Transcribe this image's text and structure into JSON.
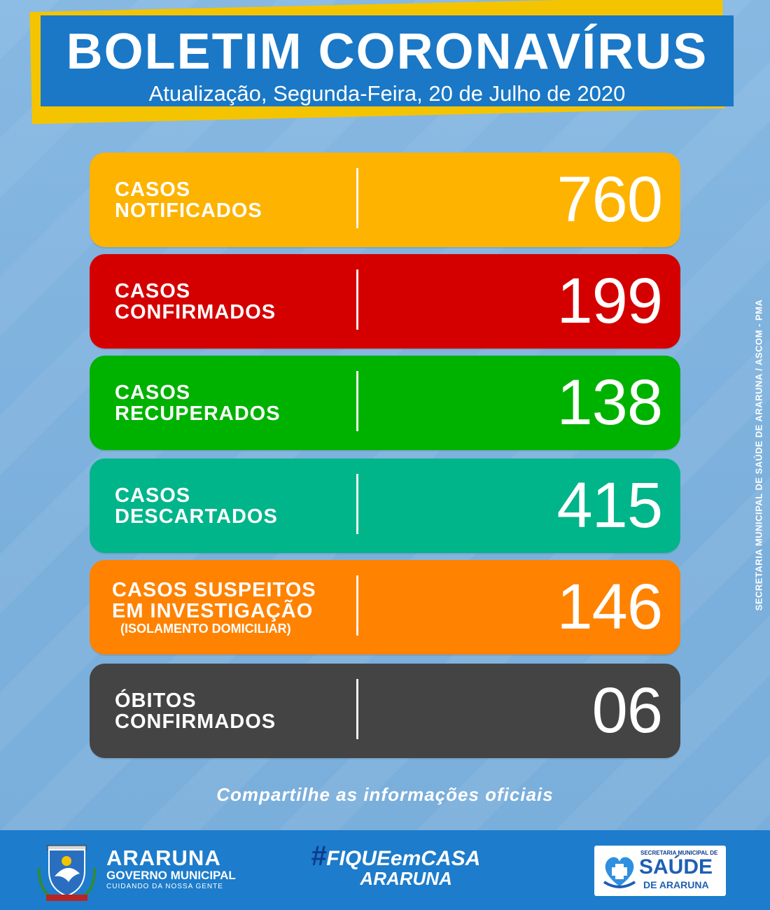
{
  "header": {
    "title": "BOLETIM CORONAVÍRUS",
    "subtitle": "Atualização, Segunda-Feira, 20 de Julho de 2020"
  },
  "cards": [
    {
      "line1": "CASOS",
      "line2": "NOTIFICADOS",
      "value": "760",
      "color": "#fdb300"
    },
    {
      "line1": "CASOS",
      "line2": "CONFIRMADOS",
      "value": "199",
      "color": "#d40000"
    },
    {
      "line1": "CASOS",
      "line2": "RECUPERADOS",
      "value": "138",
      "color": "#00b200"
    },
    {
      "line1": "CASOS",
      "line2": "DESCARTADOS",
      "value": "415",
      "color": "#00b58a"
    },
    {
      "line1": "CASOS SUSPEITOS",
      "line2": "EM INVESTIGAÇÃO",
      "note": "(ISOLAMENTO DOMICILIAR)",
      "value": "146",
      "color": "#ff8200"
    },
    {
      "line1": "ÓBITOS",
      "line2": "CONFIRMADOS",
      "value": "06",
      "color": "#444444"
    }
  ],
  "side_credit": "SECRETARIA MUNICIPAL DE SAÚDE DE ARARUNA / ASCOM - PMA",
  "share_text": "Compartilhe as informações oficiais",
  "footer": {
    "brand_name": "ARARUNA",
    "brand_gov": "GOVERNO MUNICIPAL",
    "brand_slogan": "CUIDANDO DA NOSSA GENTE",
    "hashtag_line1_hash": "#",
    "hashtag_line1": "FIQUEemCASA",
    "hashtag_line2": "ARARUNA",
    "health_sec": "SECRETARIA MUNICIPAL DE",
    "health_saude": "SAÚDE",
    "health_araruna": "DE ARARUNA",
    "crest_text": "ARARUNA"
  }
}
